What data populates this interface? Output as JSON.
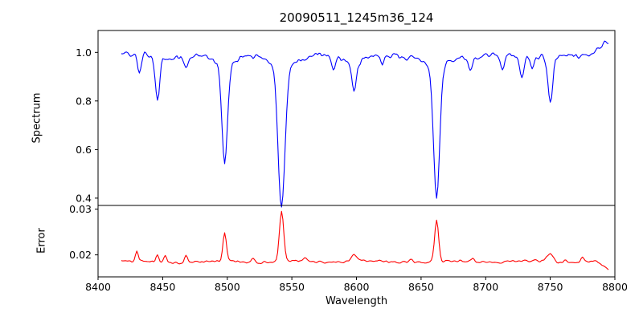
{
  "figure": {
    "background": "#ffffff"
  },
  "chart_data": {
    "type": "line",
    "title": "20090511_1245m36_124",
    "xlabel": "Wavelength",
    "grid": false,
    "legend": "none",
    "x_range": [
      8400,
      8800
    ],
    "x_ticks": [
      8400,
      8450,
      8500,
      8550,
      8600,
      8650,
      8700,
      8750,
      8800
    ],
    "data_x_range": [
      8418,
      8795
    ],
    "panels": [
      {
        "name": "spectrum",
        "ylabel": "Spectrum",
        "line_color": "#0000ff",
        "ylim": [
          0.37,
          1.09
        ],
        "ytick_values": [
          0.4,
          0.6,
          0.8,
          1.0
        ],
        "ytick_labels": [
          "0.4",
          "0.6",
          "0.8",
          "1.0"
        ],
        "continuum_level": 0.985,
        "continuum_wiggle": {
          "amplitude": 0.006,
          "period": 47
        },
        "noise_amplitude": 0.016,
        "noise_seed": 20090511,
        "absorption_lines": [
          {
            "center": 8432,
            "depth": 0.07,
            "width": 1.4
          },
          {
            "center": 8446,
            "depth": 0.185,
            "width": 1.6
          },
          {
            "center": 8468,
            "depth": 0.06,
            "width": 1.4
          },
          {
            "center": 8498,
            "depth": 0.415,
            "width": 2.1
          },
          {
            "center": 8498,
            "depth": 0.035,
            "width": 8
          },
          {
            "center": 8542,
            "depth": 0.575,
            "width": 2.6
          },
          {
            "center": 8542,
            "depth": 0.045,
            "width": 10
          },
          {
            "center": 8582,
            "depth": 0.05,
            "width": 1.4
          },
          {
            "center": 8598,
            "depth": 0.105,
            "width": 1.7
          },
          {
            "center": 8598,
            "depth": 0.03,
            "width": 7
          },
          {
            "center": 8620,
            "depth": 0.045,
            "width": 1.3
          },
          {
            "center": 8662,
            "depth": 0.535,
            "width": 2.4
          },
          {
            "center": 8662,
            "depth": 0.045,
            "width": 9
          },
          {
            "center": 8688,
            "depth": 0.05,
            "width": 1.4
          },
          {
            "center": 8713,
            "depth": 0.07,
            "width": 1.5
          },
          {
            "center": 8728,
            "depth": 0.08,
            "width": 1.5
          },
          {
            "center": 8736,
            "depth": 0.06,
            "width": 1.2
          },
          {
            "center": 8750,
            "depth": 0.195,
            "width": 1.9
          }
        ],
        "right_edge_rise": {
          "start": 8778,
          "end": 8795,
          "amount": 0.06
        }
      },
      {
        "name": "error",
        "ylabel": "Error",
        "line_color": "#ff0000",
        "ylim": [
          0.0152,
          0.0308
        ],
        "ytick_values": [
          0.02,
          0.03
        ],
        "ytick_labels": [
          "0.02",
          "0.03"
        ],
        "baseline_level": 0.0185,
        "baseline_wiggle": {
          "amplitude": 0.0002,
          "period": 60
        },
        "noise_amplitude": 0.00035,
        "noise_seed": 1245,
        "spikes": [
          {
            "center": 8430,
            "height": 0.0022,
            "width": 1.1
          },
          {
            "center": 8446,
            "height": 0.0017,
            "width": 1.1
          },
          {
            "center": 8452,
            "height": 0.0012,
            "width": 1.0
          },
          {
            "center": 8468,
            "height": 0.0018,
            "width": 1.2
          },
          {
            "center": 8498,
            "height": 0.006,
            "width": 1.4
          },
          {
            "center": 8520,
            "height": 0.0008,
            "width": 1.5
          },
          {
            "center": 8542,
            "height": 0.0108,
            "width": 1.7
          },
          {
            "center": 8560,
            "height": 0.0007,
            "width": 1.5
          },
          {
            "center": 8598,
            "height": 0.0016,
            "width": 2.2
          },
          {
            "center": 8642,
            "height": 0.0007,
            "width": 1.5
          },
          {
            "center": 8662,
            "height": 0.009,
            "width": 1.5
          },
          {
            "center": 8690,
            "height": 0.0008,
            "width": 1.5
          },
          {
            "center": 8750,
            "height": 0.0018,
            "width": 2.5
          },
          {
            "center": 8762,
            "height": 0.0008,
            "width": 1.2
          },
          {
            "center": 8775,
            "height": 0.0012,
            "width": 1.3
          }
        ],
        "right_edge_drop": {
          "start": 8786,
          "end": 8795,
          "amount": 0.0018
        }
      }
    ]
  }
}
